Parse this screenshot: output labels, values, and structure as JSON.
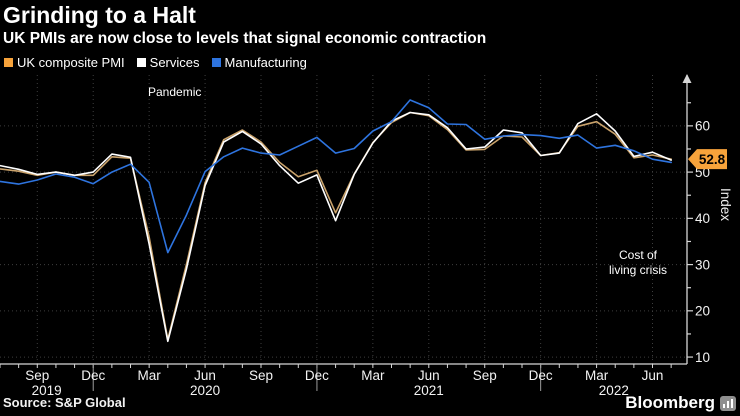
{
  "header": {
    "title": "Grinding to a Halt",
    "subtitle": "UK PMIs are now close to levels that signal economic contraction"
  },
  "legend": {
    "items": [
      {
        "label": "UK composite PMI",
        "swatch_color": "#F7A33B"
      },
      {
        "label": "Services",
        "swatch_color": "#FFFFFF"
      },
      {
        "label": "Manufacturing",
        "swatch_color": "#2E74DF"
      }
    ]
  },
  "annotations": {
    "pandemic": "Pandemic",
    "cost_of_living_line1": "Cost of",
    "cost_of_living_line2": "living crisis",
    "badge_value": "52.8"
  },
  "axis": {
    "y_label": "Index"
  },
  "footer": {
    "source": "Source: S&P Global",
    "brand": "Bloomberg"
  },
  "colors": {
    "background": "#000000",
    "title_text": "#FFFFFF",
    "badge_fill": "#F7A33B",
    "badge_text": "#000000",
    "composite_line": "#C9A26B",
    "services_line": "#FFFFFF",
    "manufacturing_line": "#2E74DF",
    "grid": "#3E3E3E",
    "axis_line": "#D6D6D6",
    "tick_text": "#F2F2F2",
    "year_divider": "#9C9C9C"
  },
  "chart_data": {
    "type": "line",
    "title": "Grinding to a Halt",
    "subtitle": "UK PMIs are now close to levels that signal economic contraction",
    "ylabel": "Index",
    "xlabel": "",
    "frequency": "monthly",
    "grid": "dotted",
    "legend_position": "top-left",
    "ylim": [
      8.5,
      71
    ],
    "yticks_labeled": [
      10,
      20,
      30,
      40,
      50,
      60
    ],
    "yticks_minor": [
      15,
      25,
      35,
      45,
      55,
      65
    ],
    "x": [
      "Jul 2019",
      "Aug 2019",
      "Sep 2019",
      "Oct 2019",
      "Nov 2019",
      "Dec 2019",
      "Jan 2020",
      "Feb 2020",
      "Mar 2020",
      "Apr 2020",
      "May 2020",
      "Jun 2020",
      "Jul 2020",
      "Aug 2020",
      "Sep 2020",
      "Oct 2020",
      "Nov 2020",
      "Dec 2020",
      "Jan 2021",
      "Feb 2021",
      "Mar 2021",
      "Apr 2021",
      "May 2021",
      "Jun 2021",
      "Jul 2021",
      "Aug 2021",
      "Sep 2021",
      "Oct 2021",
      "Nov 2021",
      "Dec 2021",
      "Jan 2022",
      "Feb 2022",
      "Mar 2022",
      "Apr 2022",
      "May 2022",
      "Jun 2022",
      "Jul 2022"
    ],
    "series": [
      {
        "name": "UK composite PMI",
        "color": "#C9A26B",
        "values": [
          50.7,
          50.2,
          49.3,
          50.0,
          49.3,
          49.3,
          53.3,
          53.0,
          36.0,
          13.8,
          30.0,
          47.7,
          57.0,
          59.1,
          56.5,
          52.1,
          49.0,
          50.4,
          41.2,
          49.6,
          56.4,
          60.7,
          62.9,
          62.2,
          59.2,
          54.8,
          54.9,
          57.8,
          57.6,
          53.6,
          54.2,
          59.9,
          60.9,
          58.2,
          53.1,
          53.7,
          52.8
        ]
      },
      {
        "name": "Services",
        "color": "#FFFFFF",
        "values": [
          51.4,
          50.6,
          49.5,
          50.0,
          49.3,
          50.0,
          53.9,
          53.2,
          34.5,
          13.4,
          29.0,
          47.1,
          56.5,
          58.8,
          56.1,
          51.4,
          47.6,
          49.4,
          39.5,
          49.5,
          56.3,
          61.0,
          62.9,
          62.4,
          59.6,
          55.0,
          55.4,
          59.1,
          58.5,
          53.6,
          54.1,
          60.5,
          62.6,
          58.9,
          53.4,
          54.3,
          52.6
        ]
      },
      {
        "name": "Manufacturing",
        "color": "#2E74DF",
        "values": [
          48.0,
          47.4,
          48.3,
          49.6,
          48.9,
          47.5,
          50.0,
          51.7,
          47.8,
          32.6,
          40.7,
          50.1,
          53.3,
          55.2,
          54.1,
          53.7,
          55.6,
          57.5,
          54.1,
          55.1,
          58.9,
          60.9,
          65.6,
          63.9,
          60.4,
          60.3,
          57.1,
          57.8,
          58.1,
          57.9,
          57.3,
          58.0,
          55.2,
          55.8,
          54.6,
          52.8,
          52.1
        ]
      }
    ],
    "x_tick_labels": [
      {
        "index": 2,
        "label": "Sep"
      },
      {
        "index": 5,
        "label": "Dec"
      },
      {
        "index": 8,
        "label": "Mar"
      },
      {
        "index": 11,
        "label": "Jun"
      },
      {
        "index": 14,
        "label": "Sep"
      },
      {
        "index": 17,
        "label": "Dec"
      },
      {
        "index": 20,
        "label": "Mar"
      },
      {
        "index": 23,
        "label": "Jun"
      },
      {
        "index": 26,
        "label": "Sep"
      },
      {
        "index": 29,
        "label": "Dec"
      },
      {
        "index": 32,
        "label": "Mar"
      },
      {
        "index": 35,
        "label": "Jun"
      }
    ],
    "year_dividers": [
      5,
      17,
      29
    ],
    "year_labels": [
      "2019",
      "2020",
      "2021",
      "2022"
    ],
    "last_value_label": {
      "series": "UK composite PMI",
      "value": 52.8
    }
  }
}
